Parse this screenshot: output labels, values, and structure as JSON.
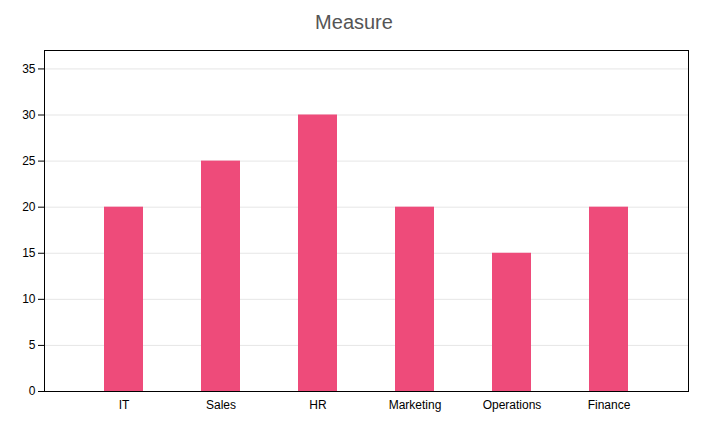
{
  "chart_data": {
    "type": "bar",
    "title": "Measure",
    "categories": [
      "IT",
      "Sales",
      "HR",
      "Marketing",
      "Operations",
      "Finance"
    ],
    "values": [
      20,
      25,
      30,
      20,
      15,
      20
    ],
    "color": "#EE4B7A",
    "ylim": [
      0,
      37
    ],
    "yticks": [
      0,
      5,
      10,
      15,
      20,
      25,
      30,
      35
    ],
    "grid": true
  }
}
